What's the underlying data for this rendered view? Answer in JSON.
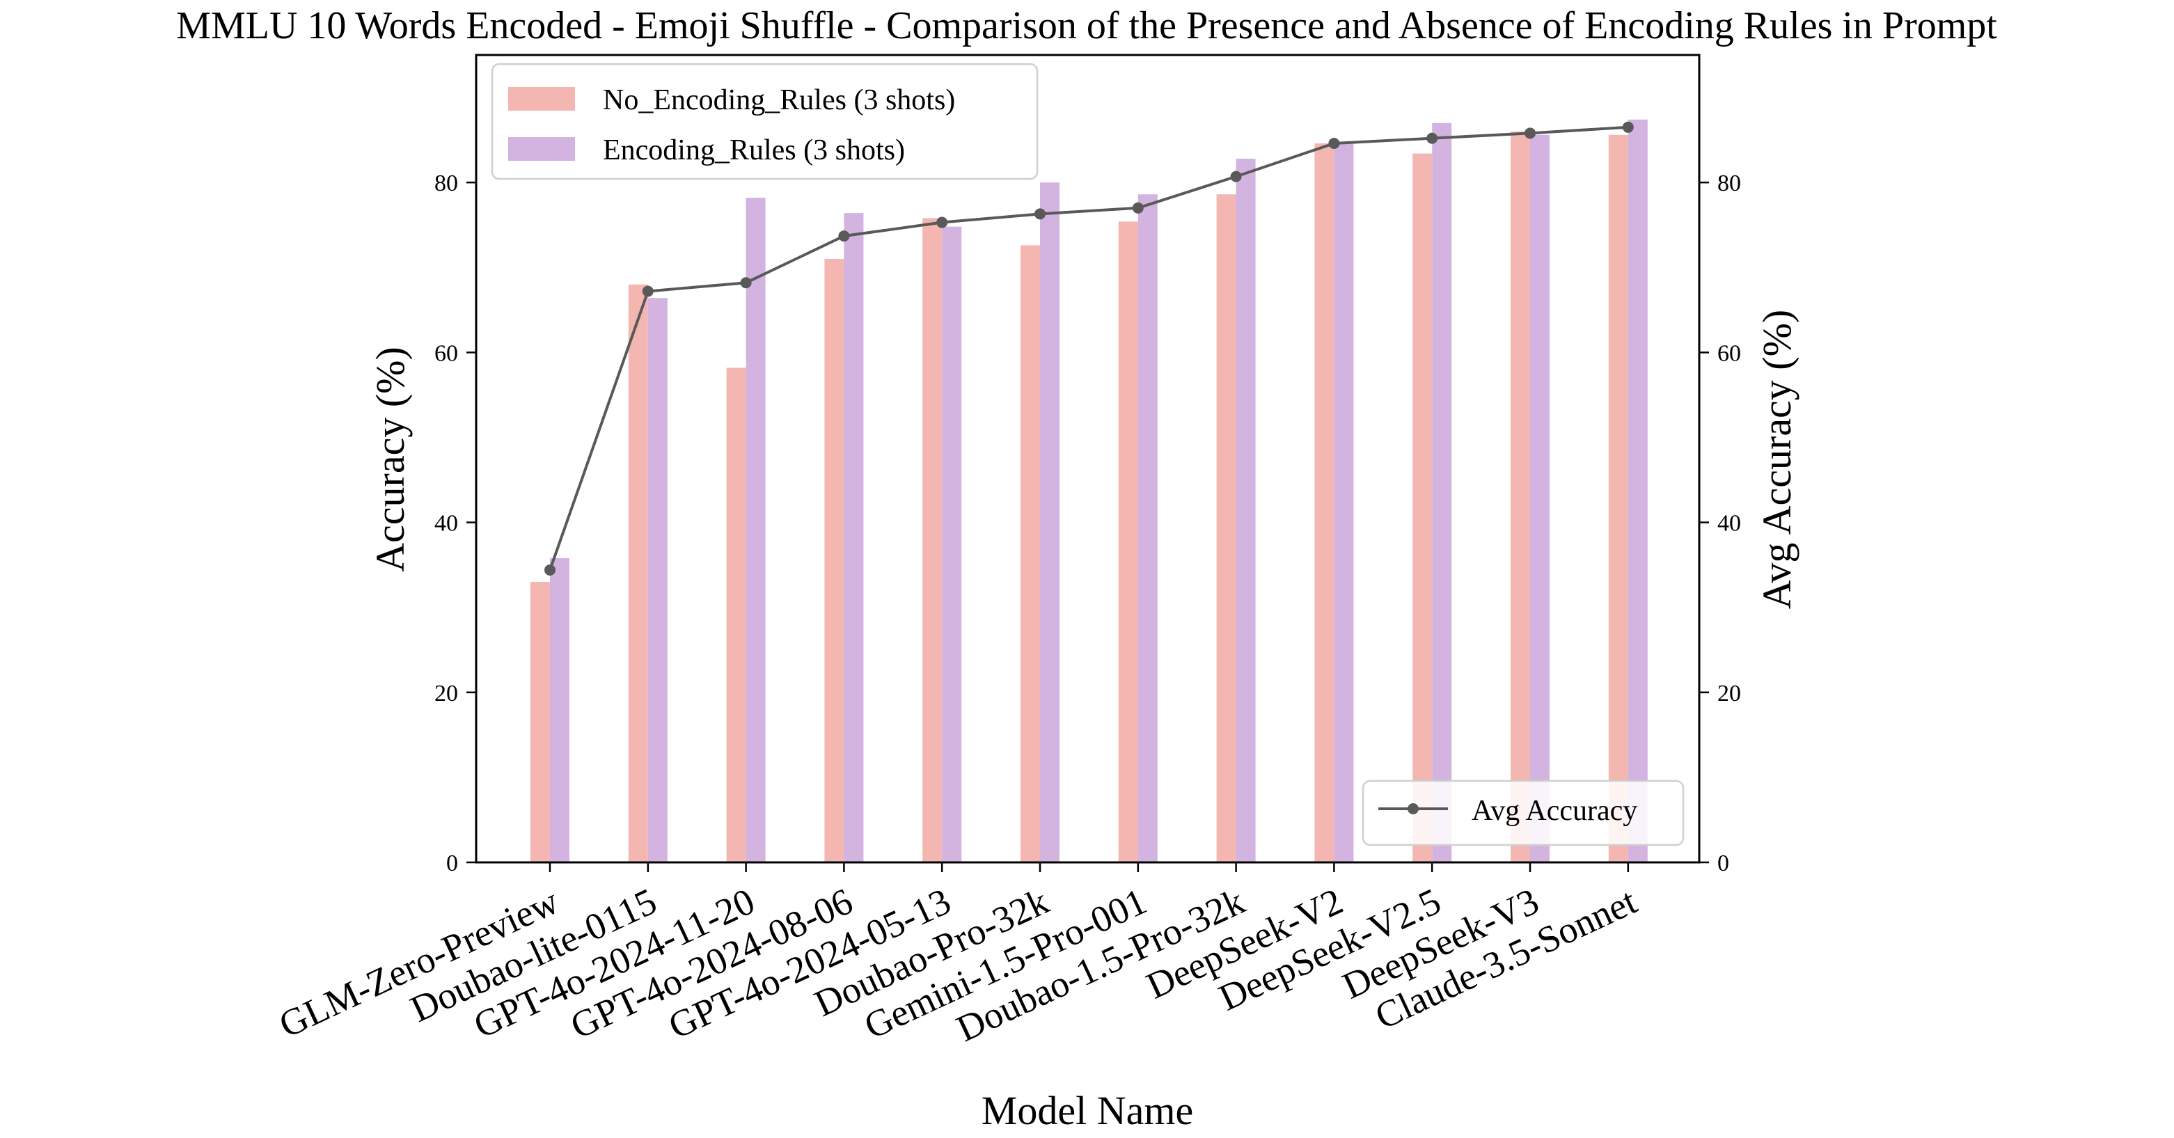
{
  "chart_data": {
    "type": "bar",
    "title": "MMLU 10 Words Encoded - Emoji Shuffle - Comparison of the Presence and Absence of Encoding Rules in Prompt",
    "xlabel": "Model Name",
    "ylabel": "Accuracy (%)",
    "ylabel_right": "Avg Accuracy (%)",
    "ylim": [
      0,
      95
    ],
    "yticks": [
      0,
      20,
      40,
      60,
      80
    ],
    "categories": [
      "GLM-Zero-Preview",
      "Doubao-lite-0115",
      "GPT-4o-2024-11-20",
      "GPT-4o-2024-08-06",
      "GPT-4o-2024-05-13",
      "Doubao-Pro-32k",
      "Gemini-1.5-Pro-001",
      "Doubao-1.5-Pro-32k",
      "DeepSeek-V2",
      "DeepSeek-V2.5",
      "DeepSeek-V3",
      "Claude-3.5-Sonnet"
    ],
    "series": [
      {
        "name": "No_Encoding_Rules (3 shots)",
        "color": "#f4b6b0",
        "values": [
          33.0,
          68.0,
          58.2,
          71.0,
          75.8,
          72.6,
          75.4,
          78.6,
          84.6,
          83.4,
          86.0,
          85.6
        ]
      },
      {
        "name": "Encoding_Rules (3 shots)",
        "color": "#d3b3e0",
        "values": [
          35.8,
          66.4,
          78.2,
          76.4,
          74.8,
          80.0,
          78.6,
          82.8,
          84.6,
          87.0,
          85.6,
          87.4
        ]
      }
    ],
    "line": {
      "name": "Avg Accuracy",
      "color": "#595959",
      "values": [
        34.4,
        67.2,
        68.2,
        73.7,
        75.3,
        76.3,
        77.0,
        80.7,
        84.6,
        85.2,
        85.8,
        86.5
      ]
    },
    "legend_top": "upper-left",
    "legend_line": "lower-right",
    "grid": false
  }
}
